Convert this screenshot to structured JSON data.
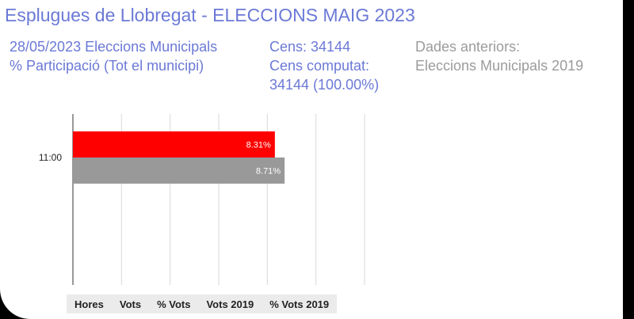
{
  "header": {
    "title": "Esplugues de Llobregat - ELECCIONS MAIG 2023",
    "election_line": "28/05/2023 Eleccions Municipals",
    "participation_line": "% Participació (Tot el municipi)",
    "cens_line": "Cens: 34144",
    "cens_computat_line1": "Cens computat:",
    "cens_computat_line2": "34144 (100.00%)",
    "previous_label": "Dades anteriors:",
    "previous_value": "Eleccions Municipals 2019"
  },
  "colors": {
    "accent": "#6b79d6",
    "series_2023": "#ff0000",
    "series_2019": "#999999"
  },
  "chart_data": {
    "type": "bar",
    "orientation": "horizontal",
    "categories": [
      "11:00"
    ],
    "series": [
      {
        "values": [
          8.31
        ],
        "labels": [
          "8.31%"
        ],
        "color": "#ff0000"
      },
      {
        "values": [
          8.71
        ],
        "labels": [
          "8.71%"
        ],
        "color": "#999999"
      }
    ],
    "xlim": [
      0,
      12
    ],
    "grid": true
  },
  "table": {
    "headers": [
      "Hores",
      "Vots",
      "% Vots",
      "Vots 2019",
      "% Vots 2019"
    ]
  }
}
